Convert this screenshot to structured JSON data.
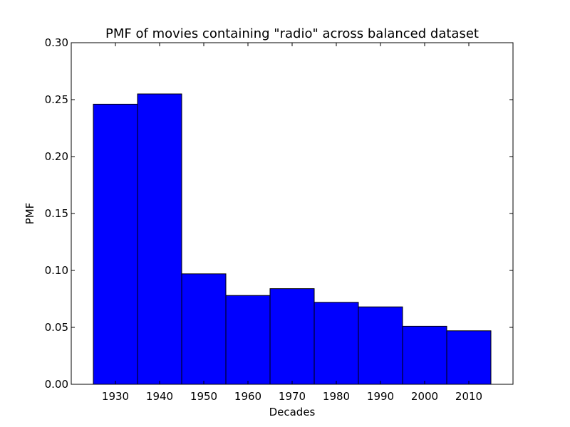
{
  "chart_data": {
    "type": "bar",
    "title": "PMF of movies containing \"radio\" across balanced dataset",
    "xlabel": "Decades",
    "ylabel": "PMF",
    "categories": [
      "1930",
      "1940",
      "1950",
      "1960",
      "1970",
      "1980",
      "1990",
      "2000",
      "2010"
    ],
    "values": [
      0.246,
      0.255,
      0.097,
      0.078,
      0.084,
      0.072,
      0.068,
      0.051,
      0.047
    ],
    "x_range": [
      1920,
      2020
    ],
    "bar_width": 10,
    "ylim": [
      0,
      0.3
    ],
    "yticks": [
      "0.00",
      "0.05",
      "0.10",
      "0.15",
      "0.20",
      "0.25",
      "0.30"
    ],
    "bar_color": "#0000ff",
    "edge_color": "#000000",
    "grid": false,
    "legend": "none"
  }
}
